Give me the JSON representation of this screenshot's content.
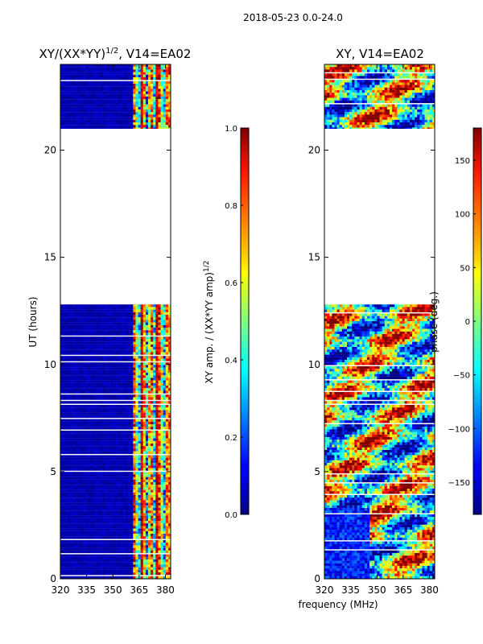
{
  "suptitle": "2018-05-23 0.0-24.0",
  "chart_data": [
    {
      "type": "heatmap",
      "title_main": "XY/(XX*YY)",
      "title_sup": "1/2",
      "title_rest": ", V14=EA02",
      "xlabel": "",
      "ylabel": "UT (hours)",
      "xlim": [
        320,
        383
      ],
      "ylim": [
        0,
        24
      ],
      "xticks": [
        320,
        335,
        350,
        365,
        380
      ],
      "yticks": [
        0,
        5,
        10,
        15,
        20
      ],
      "data_bands_hours": [
        [
          0.0,
          12.8
        ],
        [
          21.0,
          24.0
        ]
      ],
      "active_channels_mhz": [
        361,
        383
      ],
      "colorbar": {
        "label_main": "XY amp. / (XX*YY amp)",
        "label_sup": "1/2",
        "range": [
          0.0,
          1.0
        ],
        "ticks": [
          "0.0",
          "0.2",
          "0.4",
          "0.6",
          "0.8",
          "1.0"
        ]
      }
    },
    {
      "type": "heatmap",
      "title": "XY, V14=EA02",
      "xlabel": "frequency (MHz)",
      "ylabel": "",
      "xlim": [
        320,
        383
      ],
      "ylim": [
        0,
        24
      ],
      "xticks": [
        320,
        335,
        350,
        365,
        380
      ],
      "yticks": [
        0,
        5,
        10,
        15,
        20
      ],
      "data_bands_hours": [
        [
          0.0,
          12.8
        ],
        [
          21.0,
          24.0
        ]
      ],
      "colorbar": {
        "label": "phase (deg.)",
        "range": [
          -180,
          180
        ],
        "ticks": [
          "150",
          "100",
          "50",
          "0",
          "−50",
          "−100",
          "−150"
        ]
      }
    }
  ]
}
